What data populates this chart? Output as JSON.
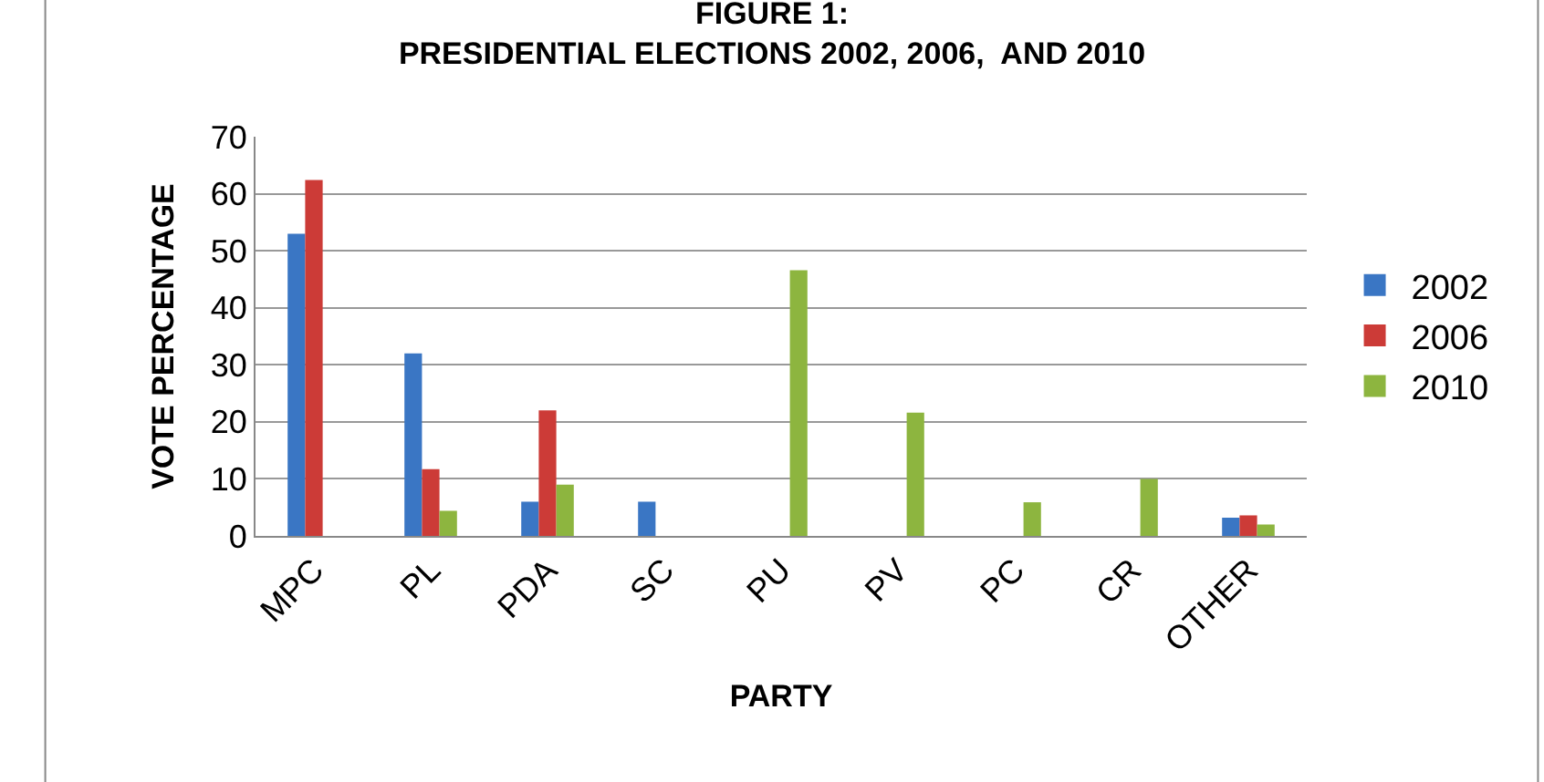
{
  "chart_data": {
    "type": "bar",
    "title": "FIGURE 1:\nPRESIDENTIAL ELECTIONS 2002, 2006,  AND 2010",
    "xlabel": "PARTY",
    "ylabel": "VOTE PERCENTAGE",
    "categories": [
      "MPC",
      "PL",
      "PDA",
      "SC",
      "PU",
      "PV",
      "PC",
      "CR",
      "OTHER"
    ],
    "series": [
      {
        "name": "2002",
        "color": "#3a76c4",
        "values": [
          53,
          32,
          6,
          6,
          null,
          null,
          null,
          null,
          3.2
        ]
      },
      {
        "name": "2006",
        "color": "#cc3b37",
        "values": [
          62.4,
          11.7,
          22,
          null,
          null,
          null,
          null,
          null,
          3.6
        ]
      },
      {
        "name": "2010",
        "color": "#8db53f",
        "values": [
          null,
          4.4,
          9,
          null,
          46.6,
          21.6,
          5.9,
          10,
          2
        ]
      }
    ],
    "ylim": [
      0,
      70
    ],
    "yticks": [
      0,
      10,
      20,
      30,
      40,
      50,
      60,
      70
    ],
    "grid": "y",
    "legend": "right"
  }
}
